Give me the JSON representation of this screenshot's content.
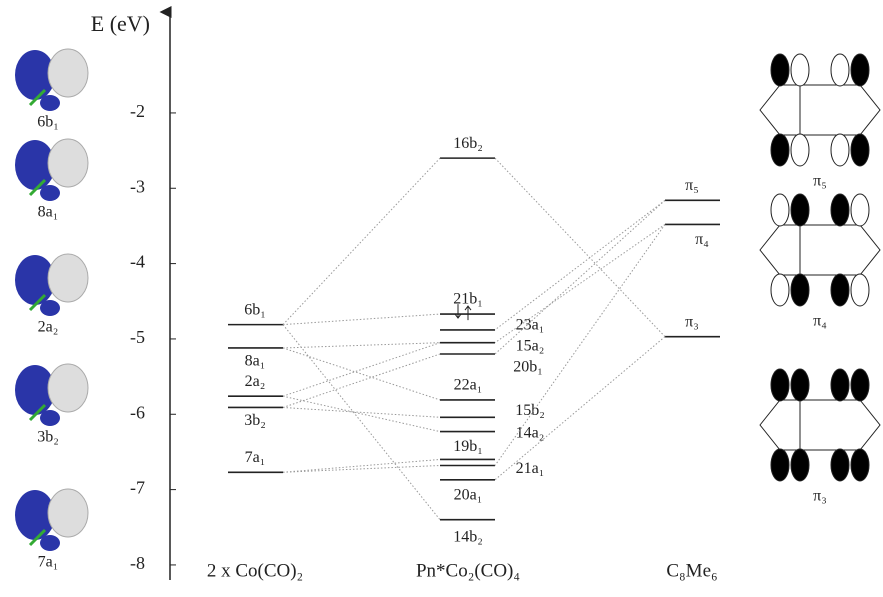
{
  "axis": {
    "label": "E (eV)",
    "ylim": [
      -8.2,
      -0.7
    ],
    "yticks": [
      -2,
      -3,
      -4,
      -5,
      -6,
      -7,
      -8
    ]
  },
  "columns": [
    {
      "title": "2 x Co(CO)₂",
      "levels": [
        {
          "label": "6b₁",
          "energy": -4.81
        },
        {
          "label": "8a₁",
          "energy": -5.12
        },
        {
          "label": "2a₂",
          "energy": -5.76
        },
        {
          "label": "3b₂",
          "energy": -5.91
        },
        {
          "label": "7a₁",
          "energy": -6.77
        }
      ]
    },
    {
      "title": "Pn*Co₂(CO)₄",
      "levels": [
        {
          "label": "16b₂",
          "energy": -2.6
        },
        {
          "label": "21b₁",
          "energy": -4.67
        },
        {
          "label": "23a₁",
          "energy": -4.88
        },
        {
          "label": "15a₂",
          "energy": -5.05
        },
        {
          "label": "20b₁",
          "energy": -5.2
        },
        {
          "label": "22a₁",
          "energy": -5.81
        },
        {
          "label": "15b₂",
          "energy": -6.04
        },
        {
          "label": "14a₂",
          "energy": -6.23
        },
        {
          "label": "19b₁",
          "energy": -6.6
        },
        {
          "label": "21a₁",
          "energy": -6.68
        },
        {
          "label": "20a₁",
          "energy": -6.87
        },
        {
          "label": "14b₂",
          "energy": -7.4
        }
      ]
    },
    {
      "title": "C₈Me₆",
      "levels": [
        {
          "label": "π₅",
          "energy": -3.16
        },
        {
          "label": "π₄",
          "energy": -3.48
        },
        {
          "label": "π₃",
          "energy": -4.97
        }
      ]
    }
  ],
  "left_orbitals": [
    "6b₁",
    "8a₁",
    "2a₂",
    "3b₂",
    "7a₁"
  ],
  "right_orbitals": [
    "π₅",
    "π₄",
    "π₃"
  ]
}
